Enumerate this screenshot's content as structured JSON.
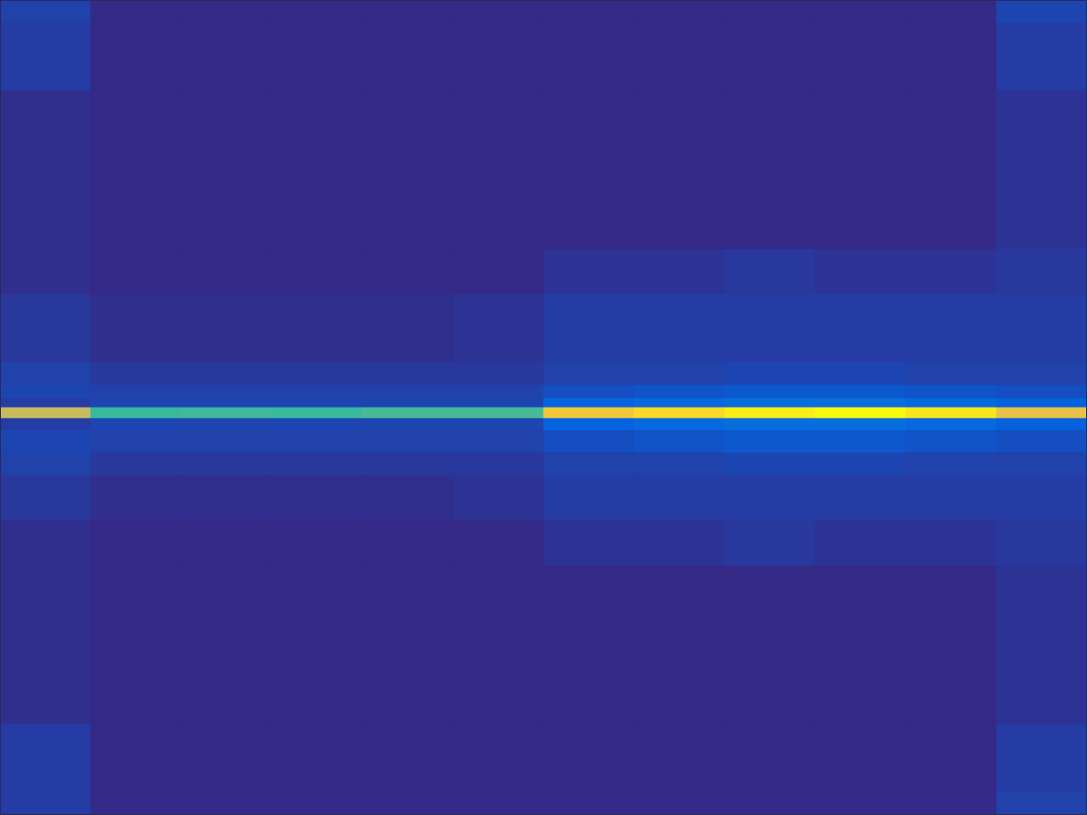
{
  "chart_data": {
    "type": "heatmap",
    "tick_labels": false,
    "xlim": [
      0,
      12
    ],
    "ylim": [
      0,
      900
    ],
    "x_edges": [
      0,
      1,
      2,
      3,
      4,
      5,
      6,
      7,
      8,
      9,
      10,
      11,
      12
    ],
    "y_edges": [
      900,
      875,
      800,
      625,
      575,
      500,
      475,
      460,
      450,
      438,
      425,
      400,
      375,
      325,
      275,
      100,
      25,
      0
    ],
    "color_range": [
      0,
      1
    ],
    "cells": [
      [
        0.05,
        0,
        0,
        0,
        0,
        0,
        0,
        0,
        0,
        0,
        0,
        0.06
      ],
      [
        0.04,
        0,
        0,
        0,
        0,
        0,
        0,
        0,
        0,
        0,
        0,
        0.04
      ],
      [
        0.01,
        0,
        0,
        0,
        0,
        0,
        0,
        0,
        0,
        0,
        0,
        0.02
      ],
      [
        0.01,
        0,
        0,
        0,
        0,
        0,
        0.02,
        0.02,
        0.03,
        0.02,
        0.02,
        0.03
      ],
      [
        0.03,
        0.01,
        0.01,
        0.01,
        0.01,
        0.02,
        0.04,
        0.04,
        0.04,
        0.04,
        0.04,
        0.04
      ],
      [
        0.05,
        0.03,
        0.03,
        0.03,
        0.03,
        0.03,
        0.05,
        0.05,
        0.06,
        0.06,
        0.05,
        0.05
      ],
      [
        0.06,
        0.05,
        0.05,
        0.05,
        0.05,
        0.05,
        0.08,
        0.09,
        0.1,
        0.1,
        0.09,
        0.08
      ],
      [
        0.04,
        0.06,
        0.06,
        0.06,
        0.06,
        0.06,
        0.13,
        0.15,
        0.16,
        0.16,
        0.15,
        0.12
      ],
      [
        0.72,
        0.5,
        0.51,
        0.5,
        0.52,
        0.52,
        0.84,
        0.9,
        0.96,
        1.0,
        0.94,
        0.8
      ],
      [
        0.04,
        0.06,
        0.06,
        0.06,
        0.06,
        0.06,
        0.13,
        0.15,
        0.16,
        0.16,
        0.15,
        0.12
      ],
      [
        0.06,
        0.05,
        0.05,
        0.05,
        0.05,
        0.05,
        0.08,
        0.09,
        0.1,
        0.1,
        0.09,
        0.08
      ],
      [
        0.05,
        0.03,
        0.03,
        0.03,
        0.03,
        0.03,
        0.05,
        0.05,
        0.06,
        0.06,
        0.05,
        0.05
      ],
      [
        0.03,
        0.01,
        0.01,
        0.01,
        0.01,
        0.02,
        0.04,
        0.04,
        0.04,
        0.04,
        0.04,
        0.04
      ],
      [
        0.01,
        0,
        0,
        0,
        0,
        0,
        0.02,
        0.02,
        0.03,
        0.02,
        0.02,
        0.03
      ],
      [
        0.01,
        0,
        0,
        0,
        0,
        0,
        0,
        0,
        0,
        0,
        0,
        0.02
      ],
      [
        0.04,
        0,
        0,
        0,
        0,
        0,
        0,
        0,
        0,
        0,
        0,
        0.04
      ],
      [
        0.04,
        0,
        0,
        0,
        0,
        0,
        0,
        0,
        0,
        0,
        0,
        0.05
      ]
    ]
  }
}
